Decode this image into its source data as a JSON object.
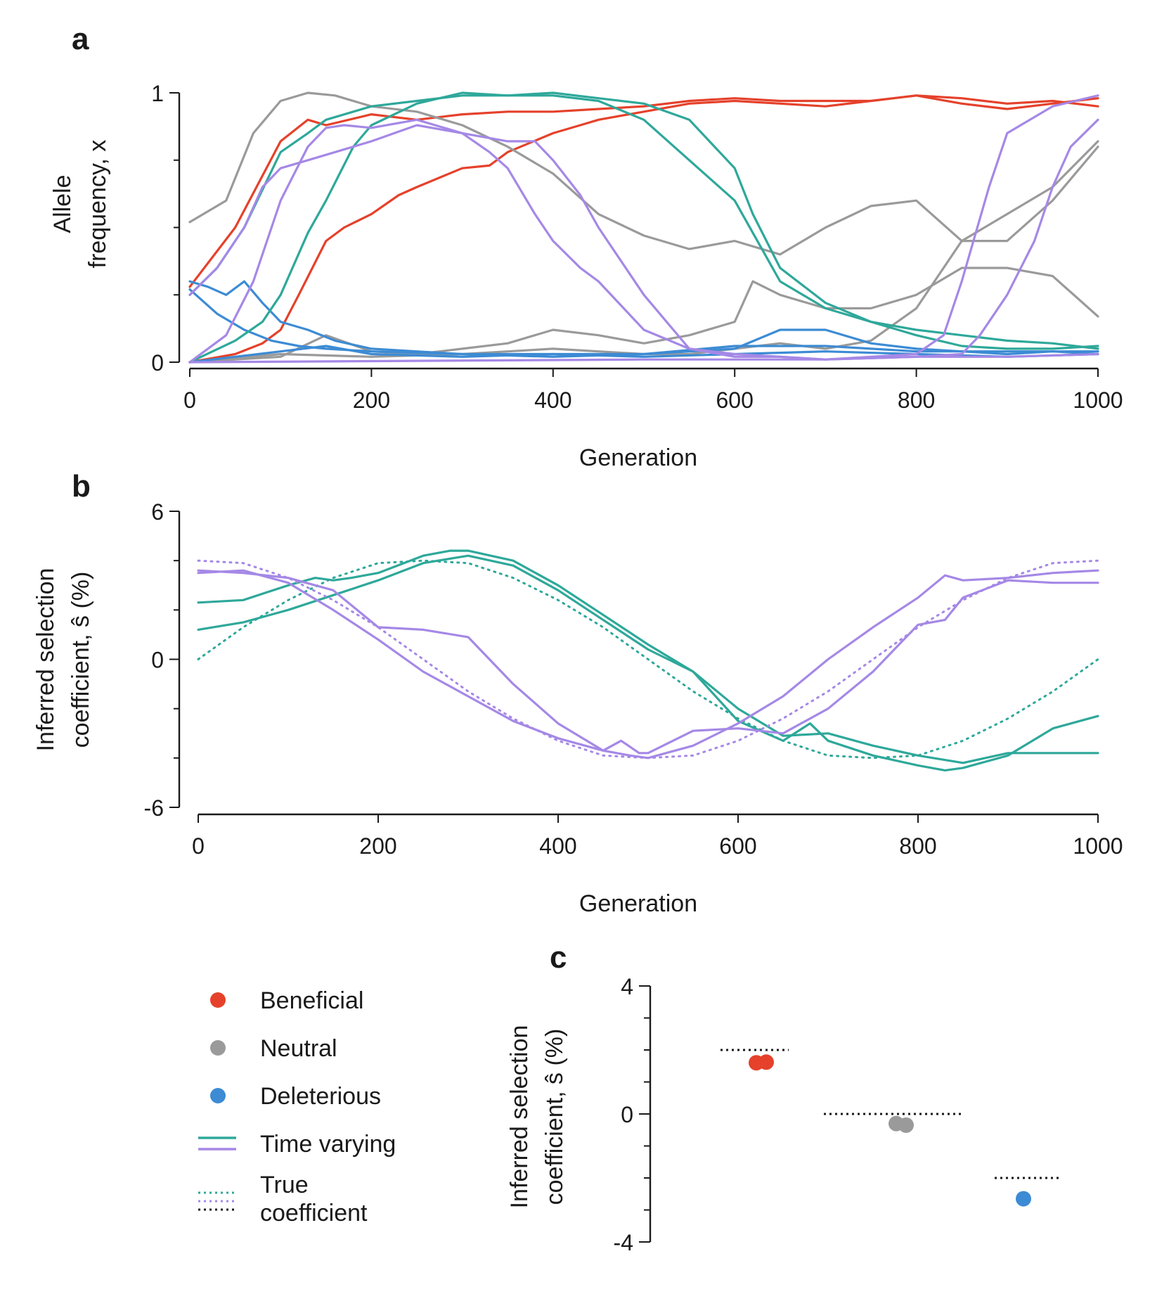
{
  "colors": {
    "beneficial": "#e5412b",
    "neutral": "#9a9a9a",
    "deleterious": "#3c8bd4",
    "teal": "#2ea89a",
    "purple": "#a588e6",
    "black": "#1a1a1a"
  },
  "panel_labels": {
    "a": "a",
    "b": "b",
    "c": "c"
  },
  "legend": {
    "beneficial": "Beneficial",
    "neutral": "Neutral",
    "deleterious": "Deleterious",
    "time_varying": "Time varying",
    "true_line1": "True",
    "true_line2": "coefficient"
  },
  "chart_data": [
    {
      "panel": "a",
      "type": "line",
      "xlabel": "Generation",
      "ylabel_line1": "Allele",
      "ylabel_line2": "frequency, x",
      "xlim": [
        0,
        1000
      ],
      "ylim": [
        0,
        1
      ],
      "xticks": [
        0,
        200,
        400,
        600,
        800,
        1000
      ],
      "xtick_labels": [
        "0",
        "200",
        "400",
        "600",
        "800",
        "1000"
      ],
      "yticks": [
        0,
        1
      ],
      "ytick_labels": [
        "0",
        "1"
      ],
      "yminor": [
        0.25,
        0.5,
        0.75
      ],
      "series": [
        {
          "color": "beneficial",
          "x": [
            0,
            50,
            100,
            130,
            150,
            200,
            250,
            300,
            350,
            400,
            450,
            500,
            550,
            600,
            650,
            700,
            750,
            800,
            850,
            900,
            950,
            1000
          ],
          "y": [
            0.28,
            0.5,
            0.82,
            0.9,
            0.88,
            0.92,
            0.9,
            0.92,
            0.93,
            0.93,
            0.94,
            0.95,
            0.97,
            0.98,
            0.97,
            0.97,
            0.97,
            0.99,
            0.98,
            0.96,
            0.97,
            0.95
          ]
        },
        {
          "color": "beneficial",
          "x": [
            0,
            50,
            80,
            100,
            120,
            150,
            170,
            200,
            230,
            250,
            300,
            330,
            350,
            400,
            430,
            450,
            500,
            550,
            600,
            650,
            700,
            750,
            800,
            850,
            900,
            950,
            1000
          ],
          "y": [
            0.0,
            0.03,
            0.07,
            0.12,
            0.25,
            0.45,
            0.5,
            0.55,
            0.62,
            0.65,
            0.72,
            0.73,
            0.78,
            0.85,
            0.88,
            0.9,
            0.93,
            0.96,
            0.97,
            0.96,
            0.95,
            0.97,
            0.99,
            0.96,
            0.94,
            0.96,
            0.98
          ]
        },
        {
          "color": "neutral",
          "x": [
            0,
            40,
            70,
            100,
            130,
            160,
            200,
            250,
            300,
            350,
            400,
            450,
            500,
            550,
            600,
            650,
            700,
            750,
            800,
            850,
            900,
            950,
            1000
          ],
          "y": [
            0.52,
            0.6,
            0.85,
            0.97,
            1.0,
            0.99,
            0.95,
            0.93,
            0.88,
            0.8,
            0.7,
            0.55,
            0.47,
            0.42,
            0.45,
            0.4,
            0.5,
            0.58,
            0.6,
            0.45,
            0.45,
            0.6,
            0.8
          ]
        },
        {
          "color": "neutral",
          "x": [
            0,
            100,
            150,
            200,
            250,
            300,
            350,
            400,
            450,
            500,
            550,
            600,
            620,
            650,
            700,
            750,
            800,
            850,
            900,
            950,
            1000
          ],
          "y": [
            0.0,
            0.02,
            0.1,
            0.04,
            0.03,
            0.05,
            0.07,
            0.12,
            0.1,
            0.07,
            0.1,
            0.15,
            0.3,
            0.25,
            0.2,
            0.2,
            0.25,
            0.35,
            0.35,
            0.32,
            0.17
          ]
        },
        {
          "color": "neutral",
          "x": [
            0,
            100,
            200,
            300,
            400,
            500,
            550,
            600,
            650,
            700,
            750,
            800,
            850,
            900,
            950,
            1000
          ],
          "y": [
            0.0,
            0.03,
            0.02,
            0.03,
            0.05,
            0.03,
            0.03,
            0.05,
            0.07,
            0.05,
            0.08,
            0.2,
            0.45,
            0.55,
            0.65,
            0.82
          ]
        },
        {
          "color": "deleterious",
          "x": [
            0,
            20,
            40,
            60,
            80,
            100,
            130,
            160,
            200,
            250,
            300,
            400,
            500,
            600,
            650,
            700,
            750,
            800,
            850,
            900,
            950,
            1000
          ],
          "y": [
            0.3,
            0.28,
            0.25,
            0.3,
            0.22,
            0.15,
            0.12,
            0.08,
            0.05,
            0.04,
            0.03,
            0.03,
            0.03,
            0.05,
            0.12,
            0.12,
            0.07,
            0.05,
            0.04,
            0.03,
            0.04,
            0.03
          ]
        },
        {
          "color": "deleterious",
          "x": [
            0,
            30,
            60,
            90,
            120,
            150,
            200,
            300,
            400,
            500,
            600,
            700,
            800,
            900,
            1000
          ],
          "y": [
            0.27,
            0.18,
            0.12,
            0.08,
            0.06,
            0.05,
            0.04,
            0.03,
            0.02,
            0.03,
            0.06,
            0.06,
            0.04,
            0.04,
            0.04
          ]
        },
        {
          "color": "deleterious",
          "x": [
            0,
            50,
            100,
            150,
            200,
            300,
            400,
            500,
            600,
            700,
            800,
            900,
            1000
          ],
          "y": [
            0.0,
            0.02,
            0.04,
            0.06,
            0.03,
            0.02,
            0.03,
            0.02,
            0.03,
            0.04,
            0.03,
            0.02,
            0.03
          ]
        },
        {
          "color": "teal",
          "x": [
            0,
            30,
            60,
            100,
            130,
            150,
            180,
            200,
            250,
            300,
            350,
            400,
            450,
            500,
            550,
            600,
            620,
            650,
            700,
            750,
            800,
            850,
            900,
            950,
            1000
          ],
          "y": [
            0.25,
            0.35,
            0.5,
            0.78,
            0.85,
            0.9,
            0.93,
            0.95,
            0.97,
            0.99,
            0.99,
            1.0,
            0.98,
            0.96,
            0.9,
            0.72,
            0.55,
            0.35,
            0.22,
            0.15,
            0.1,
            0.06,
            0.05,
            0.05,
            0.06
          ]
        },
        {
          "color": "teal",
          "x": [
            0,
            50,
            80,
            100,
            130,
            150,
            180,
            200,
            250,
            300,
            350,
            400,
            450,
            500,
            550,
            600,
            650,
            700,
            750,
            800,
            850,
            900,
            950,
            1000
          ],
          "y": [
            0.0,
            0.08,
            0.15,
            0.25,
            0.48,
            0.6,
            0.8,
            0.88,
            0.96,
            1.0,
            0.99,
            0.99,
            0.97,
            0.9,
            0.75,
            0.6,
            0.3,
            0.2,
            0.15,
            0.12,
            0.1,
            0.08,
            0.07,
            0.05
          ]
        },
        {
          "color": "purple",
          "x": [
            0,
            30,
            60,
            80,
            100,
            130,
            160,
            200,
            250,
            300,
            330,
            350,
            380,
            400,
            430,
            450,
            500,
            550,
            600,
            650,
            700,
            800,
            900,
            1000
          ],
          "y": [
            0.25,
            0.35,
            0.5,
            0.65,
            0.72,
            0.75,
            0.78,
            0.82,
            0.88,
            0.85,
            0.78,
            0.72,
            0.55,
            0.45,
            0.35,
            0.3,
            0.12,
            0.05,
            0.02,
            0.02,
            0.01,
            0.02,
            0.02,
            0.03
          ]
        },
        {
          "color": "purple",
          "x": [
            0,
            40,
            70,
            100,
            130,
            150,
            170,
            200,
            250,
            300,
            350,
            380,
            400,
            430,
            450,
            500,
            550,
            600,
            700,
            750,
            800,
            830,
            850,
            880,
            900,
            950,
            1000
          ],
          "y": [
            0.0,
            0.1,
            0.3,
            0.6,
            0.8,
            0.87,
            0.88,
            0.87,
            0.9,
            0.85,
            0.82,
            0.82,
            0.75,
            0.62,
            0.5,
            0.25,
            0.05,
            0.03,
            0.01,
            0.02,
            0.03,
            0.1,
            0.3,
            0.65,
            0.85,
            0.95,
            0.99
          ]
        },
        {
          "color": "purple",
          "x": [
            0,
            500,
            600,
            700,
            800,
            850,
            870,
            900,
            930,
            950,
            970,
            1000
          ],
          "y": [
            0.0,
            0.01,
            0.01,
            0.01,
            0.02,
            0.03,
            0.1,
            0.25,
            0.45,
            0.65,
            0.8,
            0.9
          ]
        }
      ]
    },
    {
      "panel": "b",
      "type": "line",
      "xlabel": "Generation",
      "ylabel_line1": "Inferred selection",
      "ylabel_line2": "coefficient, ŝ (%)",
      "xlim": [
        0,
        1000
      ],
      "ylim": [
        -6,
        6
      ],
      "xticks": [
        0,
        200,
        400,
        600,
        800,
        1000
      ],
      "xtick_labels": [
        "0",
        "200",
        "400",
        "600",
        "800",
        "1000"
      ],
      "yticks": [
        -6,
        0,
        6
      ],
      "ytick_labels": [
        "-6",
        "0",
        "6"
      ],
      "yminor": [
        -4,
        -2,
        2,
        4
      ],
      "series": [
        {
          "color": "teal",
          "style": "solid",
          "x": [
            0,
            50,
            100,
            130,
            150,
            170,
            200,
            250,
            280,
            300,
            350,
            400,
            450,
            500,
            550,
            600,
            650,
            700,
            750,
            800,
            850,
            900,
            950,
            1000
          ],
          "y": [
            2.3,
            2.4,
            3.0,
            3.3,
            3.2,
            3.3,
            3.5,
            4.2,
            4.4,
            4.4,
            4.0,
            3.0,
            1.8,
            0.6,
            -0.5,
            -2.0,
            -3.1,
            -3.0,
            -3.5,
            -3.9,
            -4.2,
            -3.8,
            -3.8,
            -3.8
          ]
        },
        {
          "color": "teal",
          "style": "solid",
          "x": [
            0,
            50,
            100,
            150,
            200,
            250,
            300,
            350,
            400,
            450,
            500,
            550,
            600,
            650,
            680,
            700,
            750,
            800,
            830,
            850,
            900,
            950,
            1000
          ],
          "y": [
            1.2,
            1.5,
            2.0,
            2.6,
            3.2,
            3.9,
            4.2,
            3.8,
            2.8,
            1.6,
            0.4,
            -0.5,
            -2.5,
            -3.3,
            -2.6,
            -3.3,
            -3.9,
            -4.3,
            -4.5,
            -4.4,
            -3.9,
            -2.8,
            -2.3
          ]
        },
        {
          "color": "teal",
          "style": "dotted",
          "x": [
            0,
            50,
            100,
            150,
            200,
            250,
            300,
            350,
            400,
            450,
            500,
            550,
            600,
            650,
            700,
            750,
            800,
            850,
            900,
            950,
            1000
          ],
          "y": [
            0.0,
            1.3,
            2.4,
            3.3,
            3.9,
            4.0,
            3.9,
            3.3,
            2.4,
            1.3,
            0.0,
            -1.3,
            -2.4,
            -3.3,
            -3.9,
            -4.0,
            -3.9,
            -3.3,
            -2.4,
            -1.3,
            0.0
          ]
        },
        {
          "color": "purple",
          "style": "solid",
          "x": [
            0,
            50,
            100,
            150,
            200,
            250,
            300,
            350,
            400,
            450,
            480,
            500,
            550,
            600,
            650,
            700,
            750,
            800,
            830,
            850,
            900,
            950,
            1000
          ],
          "y": [
            3.5,
            3.6,
            3.1,
            2.0,
            0.8,
            -0.5,
            -1.5,
            -2.5,
            -3.2,
            -3.7,
            -3.9,
            -4.0,
            -3.5,
            -2.6,
            -1.5,
            0.0,
            1.3,
            2.5,
            3.4,
            3.2,
            3.3,
            3.5,
            3.6
          ]
        },
        {
          "color": "purple",
          "style": "solid",
          "x": [
            0,
            50,
            100,
            150,
            200,
            250,
            300,
            350,
            400,
            450,
            470,
            490,
            500,
            550,
            600,
            650,
            700,
            750,
            800,
            830,
            850,
            900,
            950,
            1000
          ],
          "y": [
            3.6,
            3.5,
            3.3,
            2.8,
            1.3,
            1.2,
            0.9,
            -1.0,
            -2.6,
            -3.7,
            -3.3,
            -3.8,
            -3.8,
            -2.9,
            -2.8,
            -3.0,
            -2.0,
            -0.5,
            1.4,
            1.6,
            2.5,
            3.2,
            3.1,
            3.1
          ]
        },
        {
          "color": "purple",
          "style": "dotted",
          "x": [
            0,
            50,
            100,
            150,
            200,
            250,
            300,
            350,
            400,
            450,
            500,
            550,
            600,
            650,
            700,
            750,
            800,
            850,
            900,
            950,
            1000
          ],
          "y": [
            4.0,
            3.9,
            3.3,
            2.4,
            1.3,
            0.0,
            -1.3,
            -2.4,
            -3.3,
            -3.9,
            -4.0,
            -3.9,
            -3.3,
            -2.4,
            -1.3,
            0.0,
            1.3,
            2.4,
            3.3,
            3.9,
            4.0
          ]
        }
      ]
    },
    {
      "panel": "c",
      "type": "scatter",
      "ylabel_line1": "Inferred selection",
      "ylabel_line2": "coefficient, ŝ (%)",
      "ylim": [
        -4,
        4
      ],
      "yticks": [
        -4,
        0,
        4
      ],
      "ytick_labels": [
        "-4",
        "0",
        "4"
      ],
      "yminor": [
        -3,
        -2,
        -1,
        1,
        2,
        3
      ],
      "categories": [
        "Beneficial",
        "Neutral",
        "Deleterious"
      ],
      "true_values": [
        2,
        0,
        -2
      ],
      "points": [
        {
          "category": "Beneficial",
          "color": "beneficial",
          "y": 1.6
        },
        {
          "category": "Beneficial",
          "color": "beneficial",
          "y": 1.62
        },
        {
          "category": "Neutral",
          "color": "neutral",
          "y": -0.3
        },
        {
          "category": "Neutral",
          "color": "neutral",
          "y": -0.35
        },
        {
          "category": "Deleterious",
          "color": "deleterious",
          "y": -2.65
        }
      ]
    }
  ]
}
